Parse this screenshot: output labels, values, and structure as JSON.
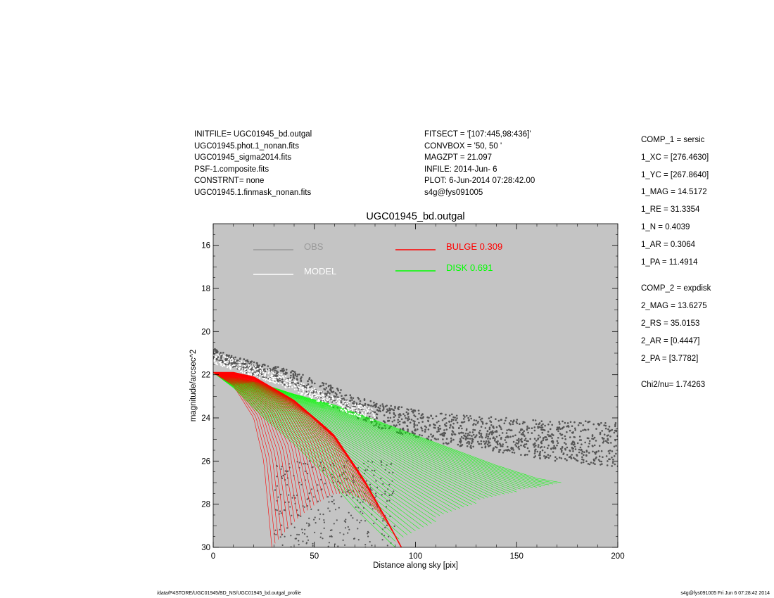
{
  "header_left": [
    "INITFILE= UGC01945_bd.outgal",
    "UGC01945.phot.1_nonan.fits",
    "UGC01945_sigma2014.fits",
    "PSF-1.composite.fits",
    "CONSTRNT= none",
    "UGC01945.1.finmask_nonan.fits"
  ],
  "header_mid": [
    "FITSECT = '[107:445,98:436]'",
    "CONVBOX = '50, 50  '",
    "MAGZPT =              21.097",
    "INFILE: 2014-Jun- 6",
    "PLOT:  6-Jun-2014 07:28:42.00",
    "s4g@fys091005"
  ],
  "params": [
    "COMP_1  = sersic",
    "1_XC    = [276.4630]",
    "1_YC    = [267.8640]",
    "1_MAG   = 14.5172",
    "1_RE    = 31.3354",
    "1_N     = 0.4039",
    "1_AR    = 0.3064",
    "1_PA    = 11.4914",
    "",
    "COMP_2  = expdisk",
    "2_MAG   = 13.6275",
    "2_RS    = 35.0153",
    "2_AR    = [0.4447]",
    "2_PA    = [3.7782]",
    "",
    "Chi2/nu=      1.74263"
  ],
  "footer_left": "/data/P4STORE/UGC01945/BD_NS/UGC01945_bd.outgal_profile",
  "footer_right": "s4g@fys091005  Fri Jun  6 07:28:42 2014",
  "colors": {
    "plot_bg": "#c4c4c4",
    "obs": "#555555",
    "model": "#ffffff",
    "bulge": "#ff0000",
    "disk": "#00ff00"
  },
  "chart_data": {
    "type": "scatter",
    "title": "UGC01945_bd.outgal",
    "xlabel": "Distance along sky [pix]",
    "ylabel": "magnitude/arcsec^2",
    "xlim": [
      0,
      200
    ],
    "ylim": [
      30,
      15
    ],
    "y_inverted": true,
    "grid": false,
    "x_ticks": [
      0,
      50,
      100,
      150,
      200
    ],
    "y_ticks": [
      16,
      18,
      20,
      22,
      24,
      26,
      28,
      30
    ],
    "legend": [
      {
        "name": "OBS",
        "color": "#999999"
      },
      {
        "name": "MODEL",
        "color": "#ffffff"
      },
      {
        "name": "BULGE  0.309",
        "color": "#ff0000"
      },
      {
        "name": "DISK  0.691",
        "color": "#00ff00"
      }
    ],
    "series": [
      {
        "name": "OBS",
        "points": [
          [
            0,
            21.0
          ],
          [
            10,
            21.4
          ],
          [
            20,
            21.7
          ],
          [
            30,
            21.9
          ],
          [
            40,
            22.2
          ],
          [
            50,
            22.6
          ],
          [
            60,
            23.0
          ],
          [
            70,
            23.4
          ],
          [
            80,
            23.8
          ],
          [
            90,
            24.0
          ],
          [
            100,
            24.2
          ],
          [
            110,
            24.4
          ],
          [
            120,
            24.5
          ],
          [
            130,
            24.6
          ],
          [
            140,
            24.7
          ],
          [
            150,
            24.8
          ],
          [
            160,
            24.9
          ],
          [
            170,
            25.0
          ],
          [
            180,
            25.0
          ],
          [
            190,
            25.1
          ],
          [
            200,
            25.1
          ]
        ]
      },
      {
        "name": "MODEL",
        "points": [
          [
            0,
            21.2
          ],
          [
            10,
            21.5
          ],
          [
            20,
            21.8
          ],
          [
            30,
            22.1
          ],
          [
            40,
            22.5
          ],
          [
            50,
            22.9
          ],
          [
            60,
            23.3
          ],
          [
            70,
            23.6
          ],
          [
            80,
            23.9
          ]
        ]
      },
      {
        "name": "BULGE  0.309",
        "inner_edge": [
          [
            0,
            21.9
          ],
          [
            10,
            22.5
          ],
          [
            20,
            24.0
          ],
          [
            25,
            26.0
          ],
          [
            29,
            30.0
          ]
        ],
        "outer_edge": [
          [
            0,
            21.9
          ],
          [
            10,
            21.9
          ],
          [
            20,
            22.1
          ],
          [
            40,
            23.2
          ],
          [
            60,
            24.9
          ],
          [
            75,
            27.0
          ],
          [
            85,
            28.6
          ],
          [
            93,
            30.0
          ]
        ]
      },
      {
        "name": "DISK  0.691",
        "upper_edge": [
          [
            0,
            21.9
          ],
          [
            20,
            22.3
          ],
          [
            40,
            22.9
          ],
          [
            60,
            23.4
          ],
          [
            80,
            24.1
          ],
          [
            100,
            24.8
          ],
          [
            120,
            25.5
          ],
          [
            140,
            26.2
          ],
          [
            160,
            26.8
          ],
          [
            172,
            27.0
          ]
        ],
        "lower_edge": [
          [
            0,
            21.9
          ],
          [
            10,
            22.6
          ],
          [
            25,
            24.0
          ],
          [
            40,
            25.2
          ],
          [
            55,
            26.6
          ],
          [
            70,
            28.2
          ],
          [
            80,
            29.1
          ],
          [
            90,
            30.0
          ]
        ]
      }
    ]
  }
}
